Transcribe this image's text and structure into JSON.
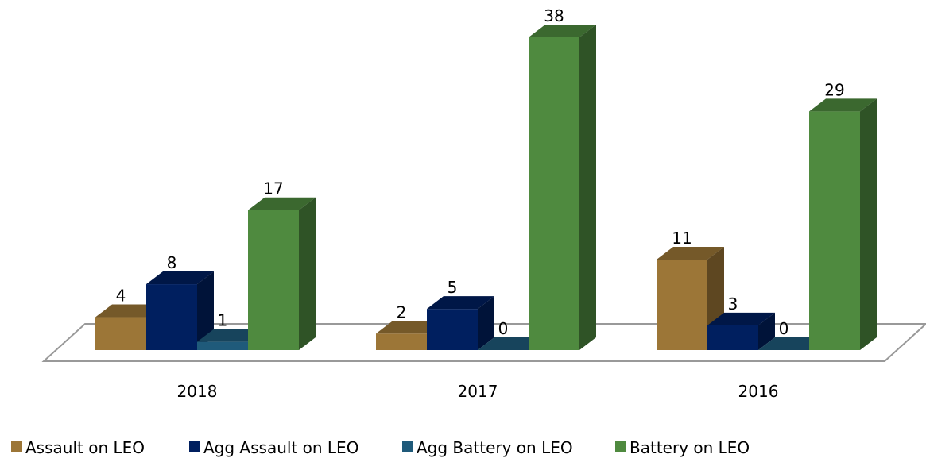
{
  "chart_data": {
    "type": "bar3d",
    "categories": [
      "2018",
      "2017",
      "2016"
    ],
    "series": [
      {
        "name": "Assault on LEO",
        "color": "#9c7637",
        "values": [
          4,
          2,
          11
        ]
      },
      {
        "name": "Agg Assault on LEO",
        "color": "#001f5f",
        "values": [
          8,
          5,
          3
        ]
      },
      {
        "name": "Agg Battery on LEO",
        "color": "#1f5a7a",
        "values": [
          1,
          0,
          0
        ]
      },
      {
        "name": "Battery on LEO",
        "color": "#4f8a3f",
        "values": [
          17,
          38,
          29
        ]
      }
    ],
    "legend": "bottom"
  }
}
